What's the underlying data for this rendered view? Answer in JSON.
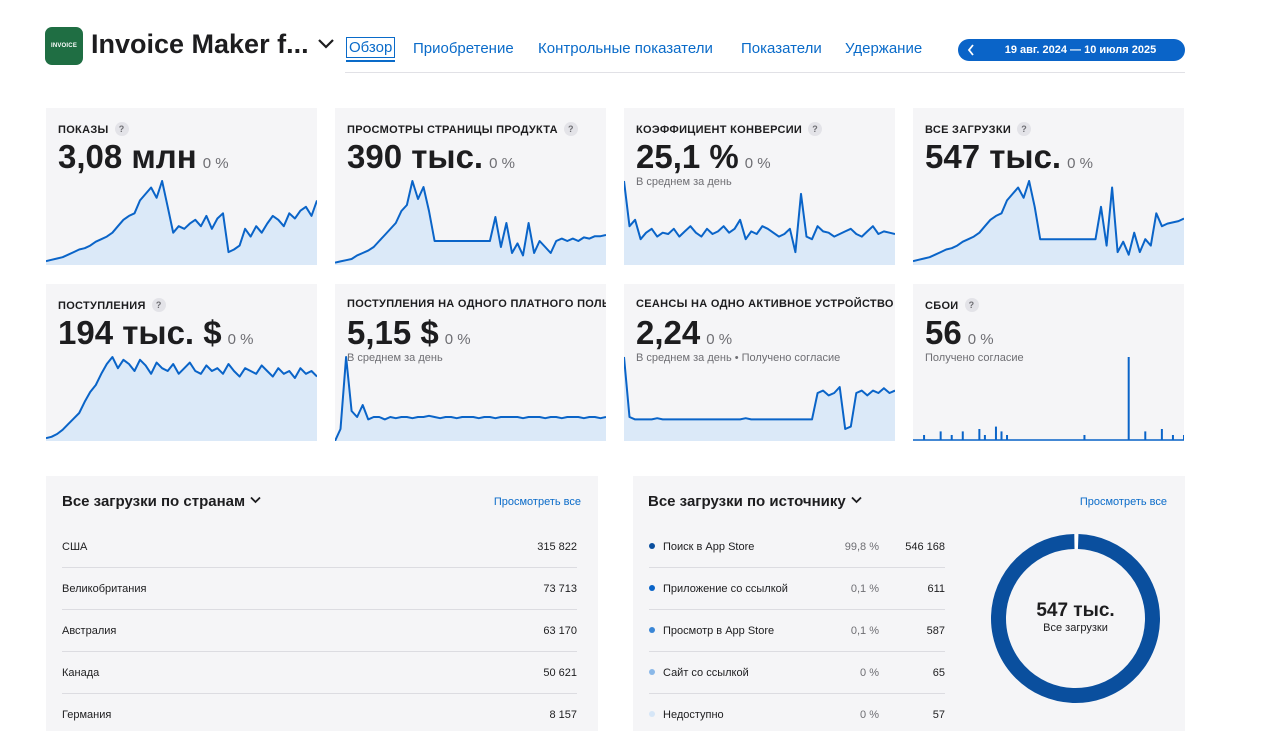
{
  "app": {
    "icon_text": "INVOICE",
    "title": "Invoice Maker f...",
    "brand_color": "#1f6e43"
  },
  "nav": {
    "tabs": [
      "Обзор",
      "Приобретение",
      "Контрольные показатели",
      "Показатели",
      "Удержание"
    ],
    "active": "Обзор",
    "date_range": "19 авг. 2024 — 10 июля 2025"
  },
  "kpis": [
    {
      "label": "ПОКАЗЫ",
      "help": "?",
      "value": "3,08 млн",
      "change": "0 %",
      "sub": ""
    },
    {
      "label": "ПРОСМОТРЫ СТРАНИЦЫ ПРОДУКТА",
      "help": "?",
      "value": "390 тыс.",
      "change": "0 %",
      "sub": ""
    },
    {
      "label": "КОЭФФИЦИЕНТ КОНВЕРСИИ",
      "help": "?",
      "value": "25,1 %",
      "change": "0 %",
      "sub": "В среднем за день"
    },
    {
      "label": "ВСЕ ЗАГРУЗКИ",
      "help": "?",
      "value": "547 тыс.",
      "change": "0 %",
      "sub": ""
    },
    {
      "label": "ПОСТУПЛЕНИЯ",
      "help": "?",
      "value": "194 тыс. $",
      "change": "0 %",
      "sub": ""
    },
    {
      "label": "ПОСТУПЛЕНИЯ НА ОДНОГО ПЛАТНОГО ПОЛЬЗ",
      "help": "",
      "value": "5,15 $",
      "change": "0 %",
      "sub": "В среднем за день"
    },
    {
      "label": "СЕАНСЫ НА ОДНО АКТИВНОЕ УСТРОЙСТВО",
      "help": "",
      "value": "2,24",
      "change": "0 %",
      "sub": "В среднем за день • Получено согласие"
    },
    {
      "label": "СБОИ",
      "help": "?",
      "value": "56",
      "change": "0 %",
      "sub": "Получено согласие"
    }
  ],
  "countries": {
    "title": "Все загрузки по странам",
    "view_all": "Просмотреть все",
    "rows": [
      {
        "label": "США",
        "value": "315 822"
      },
      {
        "label": "Великобритания",
        "value": "73 713"
      },
      {
        "label": "Австралия",
        "value": "63 170"
      },
      {
        "label": "Канада",
        "value": "50 621"
      },
      {
        "label": "Германия",
        "value": "8 157"
      }
    ]
  },
  "sources": {
    "title": "Все загрузки по источнику",
    "view_all": "Просмотреть все",
    "rows": [
      {
        "label": "Поиск в App Store",
        "pct": "99,8 %",
        "value": "546 168",
        "color": "#0a4f9e"
      },
      {
        "label": "Приложение со ссылкой",
        "pct": "0,1 %",
        "value": "611",
        "color": "#0a64c8"
      },
      {
        "label": "Просмотр в App Store",
        "pct": "0,1 %",
        "value": "587",
        "color": "#3a86d6"
      },
      {
        "label": "Сайт со ссылкой",
        "pct": "0 %",
        "value": "65",
        "color": "#8ab8e8"
      },
      {
        "label": "Недоступно",
        "pct": "0 %",
        "value": "57",
        "color": "#d6e6f7"
      }
    ],
    "donut_value": "547 тыс.",
    "donut_label": "Все загрузки",
    "donut_share": 0.998
  },
  "chart_data": [
    {
      "type": "area",
      "title": "ПОКАЗЫ",
      "values": [
        3,
        4,
        5,
        6,
        8,
        10,
        12,
        13,
        15,
        18,
        20,
        22,
        25,
        30,
        35,
        38,
        40,
        50,
        55,
        60,
        52,
        65,
        45,
        25,
        30,
        28,
        32,
        35,
        30,
        38,
        28,
        36,
        40,
        10,
        12,
        15,
        28,
        22,
        30,
        25,
        32,
        38,
        35,
        30,
        40,
        36,
        42,
        45,
        38,
        50
      ]
    },
    {
      "type": "area",
      "title": "ПРОСМОТРЫ СТРАНИЦЫ ПРОДУКТА",
      "values": [
        2,
        3,
        4,
        5,
        8,
        10,
        12,
        15,
        20,
        25,
        30,
        35,
        45,
        50,
        70,
        55,
        65,
        45,
        20,
        20,
        20,
        20,
        20,
        20,
        20,
        20,
        20,
        20,
        20,
        40,
        15,
        35,
        10,
        18,
        8,
        35,
        10,
        20,
        15,
        10,
        20,
        22,
        20,
        22,
        20,
        23,
        22,
        24,
        24,
        25
      ]
    },
    {
      "type": "area",
      "title": "КОЭФФИЦИЕНТ КОНВЕРСИИ",
      "values": [
        65,
        30,
        35,
        20,
        25,
        28,
        22,
        25,
        24,
        28,
        22,
        26,
        30,
        25,
        22,
        28,
        24,
        26,
        30,
        25,
        28,
        35,
        20,
        26,
        24,
        30,
        28,
        25,
        22,
        24,
        28,
        10,
        55,
        22,
        20,
        30,
        26,
        25,
        22,
        24,
        26,
        28,
        24,
        22,
        26,
        30,
        24,
        26,
        25,
        24
      ]
    },
    {
      "type": "area",
      "title": "ВСЕ ЗАГРУЗКИ",
      "values": [
        3,
        4,
        5,
        6,
        8,
        10,
        12,
        13,
        15,
        18,
        20,
        22,
        25,
        30,
        35,
        38,
        40,
        50,
        55,
        60,
        52,
        65,
        45,
        20,
        20,
        20,
        20,
        20,
        20,
        20,
        20,
        20,
        20,
        20,
        45,
        15,
        60,
        10,
        18,
        8,
        25,
        10,
        20,
        15,
        40,
        30,
        32,
        33,
        34,
        36
      ]
    },
    {
      "type": "area",
      "title": "ПОСТУПЛЕНИЯ",
      "values": [
        2,
        3,
        5,
        8,
        12,
        16,
        20,
        28,
        35,
        40,
        48,
        55,
        60,
        52,
        58,
        55,
        50,
        58,
        54,
        48,
        56,
        52,
        50,
        55,
        48,
        52,
        56,
        50,
        48,
        54,
        50,
        52,
        48,
        55,
        50,
        46,
        52,
        50,
        48,
        54,
        50,
        46,
        52,
        48,
        50,
        45,
        52,
        48,
        50,
        46
      ]
    },
    {
      "type": "area",
      "title": "ПОСТУПЛЕНИЯ НА ОДНОГО ПЛАТНОГО ПОЛЬЗ",
      "values": [
        0,
        10,
        70,
        25,
        20,
        30,
        18,
        20,
        20,
        18,
        20,
        19,
        20,
        20,
        19,
        20,
        20,
        21,
        20,
        19,
        20,
        20,
        19,
        20,
        20,
        20,
        19,
        20,
        20,
        19,
        20,
        20,
        20,
        20,
        19,
        20,
        20,
        20,
        19,
        20,
        20,
        19,
        20,
        20,
        20,
        19,
        20,
        20,
        19,
        20
      ]
    },
    {
      "type": "area",
      "title": "СЕАНСЫ НА ОДНО АКТИВНОЕ УСТРОЙСТВО",
      "values": [
        70,
        20,
        18,
        18,
        18,
        18,
        19,
        18,
        18,
        18,
        18,
        18,
        18,
        18,
        18,
        18,
        18,
        18,
        18,
        18,
        18,
        18,
        19,
        18,
        18,
        18,
        18,
        18,
        18,
        18,
        18,
        18,
        18,
        18,
        18,
        40,
        42,
        38,
        40,
        45,
        10,
        12,
        40,
        42,
        38,
        42,
        40,
        44,
        40,
        42
      ]
    },
    {
      "type": "bar",
      "title": "СБОИ",
      "values": [
        0,
        0,
        5,
        0,
        0,
        8,
        0,
        5,
        0,
        8,
        0,
        0,
        10,
        5,
        0,
        12,
        8,
        5,
        0,
        0,
        0,
        0,
        0,
        0,
        0,
        0,
        0,
        0,
        0,
        0,
        0,
        5,
        0,
        0,
        0,
        0,
        0,
        0,
        0,
        70,
        0,
        0,
        8,
        0,
        0,
        10,
        0,
        5,
        0,
        5
      ]
    }
  ]
}
